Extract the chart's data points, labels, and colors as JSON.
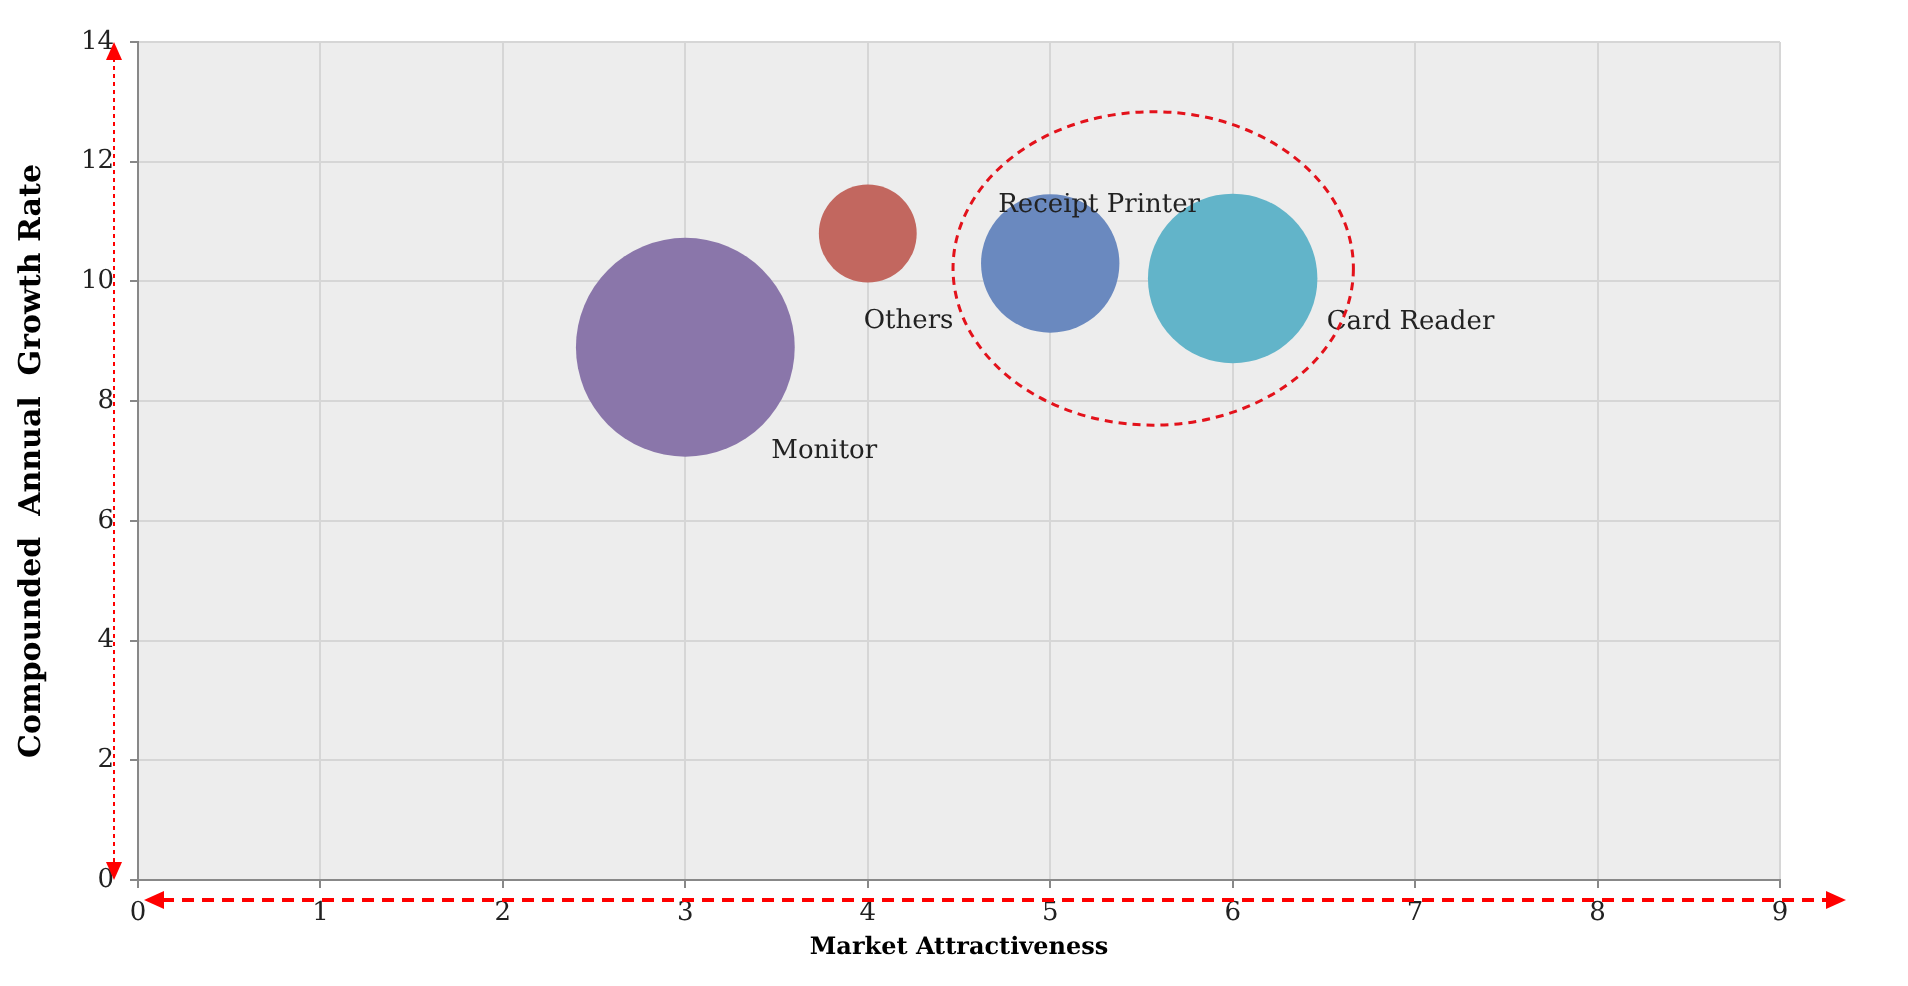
{
  "chart_data": {
    "type": "bubble",
    "xlabel": "Market Attractiveness",
    "ylabel": "Compounded  Annual  Growth Rate",
    "xlim": [
      0,
      9
    ],
    "xticks": [
      0,
      1,
      2,
      3,
      4,
      5,
      6,
      7,
      8,
      9
    ],
    "ylim": [
      0,
      14
    ],
    "yticks": [
      0,
      2,
      4,
      6,
      8,
      10,
      12,
      14
    ],
    "grid": true,
    "legend": false,
    "series": [
      {
        "name": "Monitor",
        "color": "#8a76aa",
        "x": [
          3
        ],
        "values": [
          8.9
        ],
        "sizes": [
          1
        ]
      },
      {
        "name": "Others",
        "color": "#c2675f",
        "x": [
          4
        ],
        "values": [
          10.8
        ],
        "sizes": [
          0.2
        ]
      },
      {
        "name": "Receipt Printer",
        "color": "#6a89bf",
        "x": [
          5
        ],
        "values": [
          10.3
        ],
        "sizes": [
          0.4
        ]
      },
      {
        "name": "Card Reader",
        "color": "#62b4c9",
        "x": [
          6
        ],
        "values": [
          10.05
        ],
        "sizes": [
          0.6
        ]
      }
    ]
  }
}
